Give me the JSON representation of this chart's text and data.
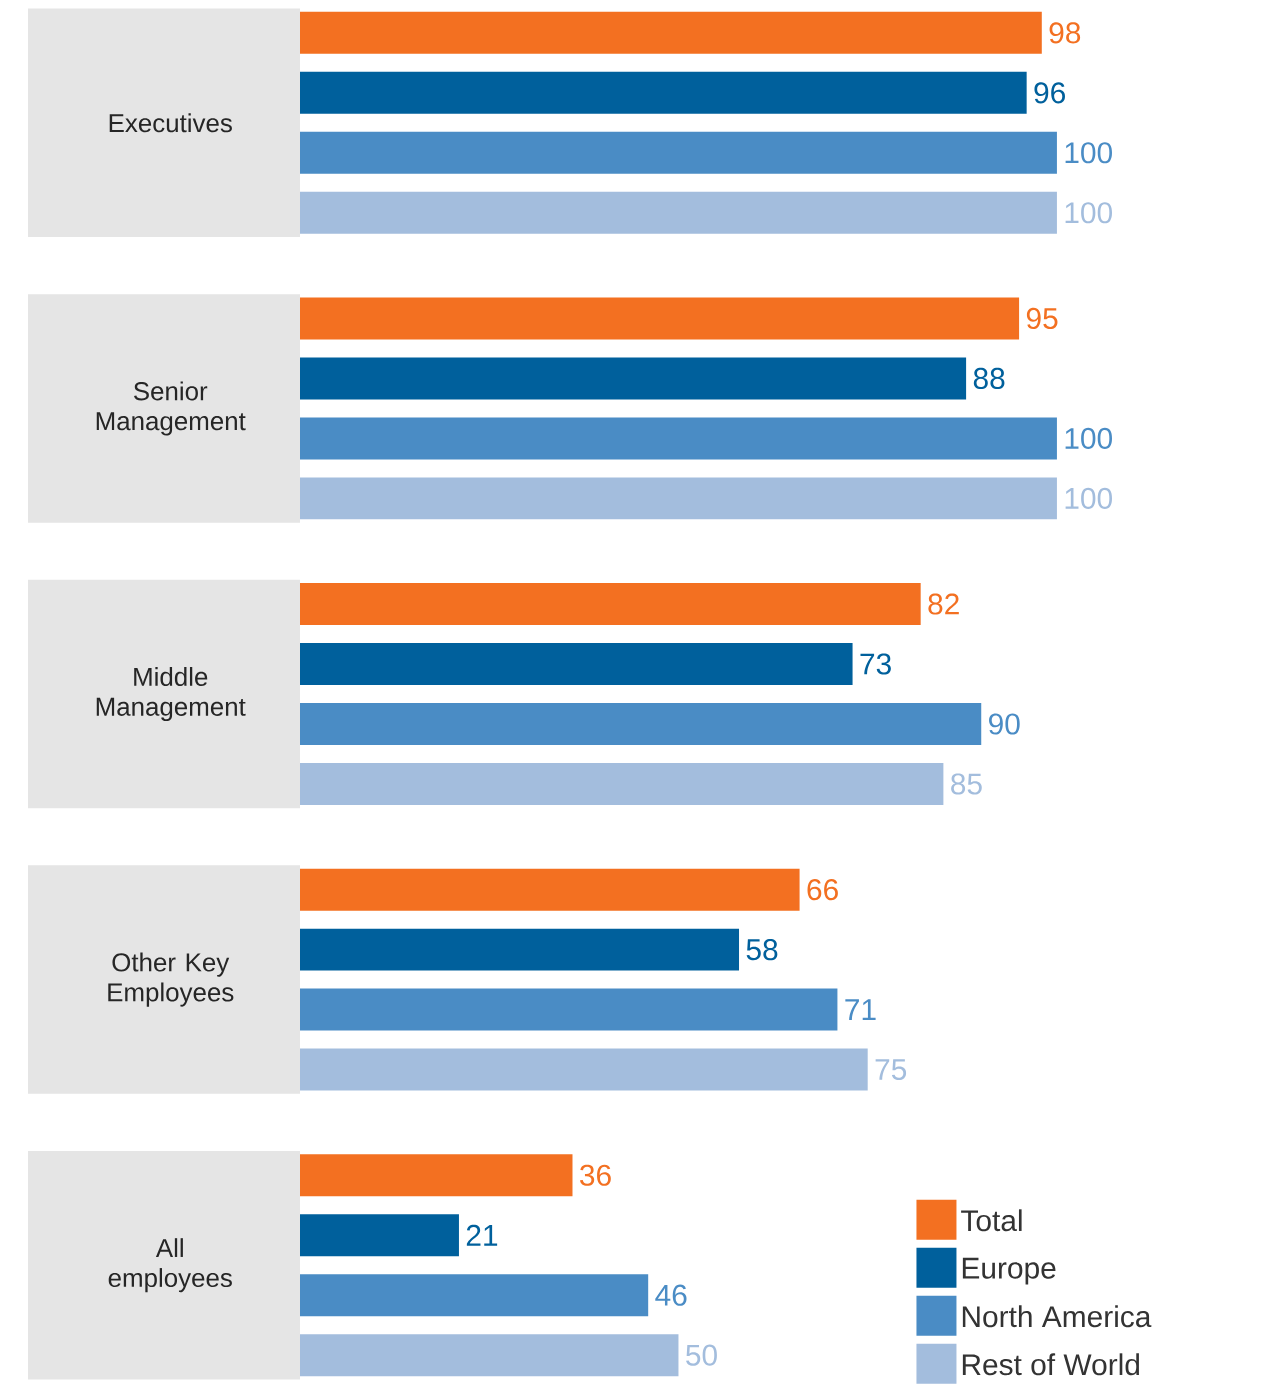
{
  "chart_data": {
    "type": "bar",
    "orientation": "horizontal",
    "categories": [
      "Executives",
      "Senior Management",
      "Middle Management",
      "Other Key Employees",
      "All employees"
    ],
    "series": [
      {
        "name": "Total",
        "color": "#f37021",
        "values": [
          98,
          95,
          82,
          66,
          36
        ]
      },
      {
        "name": "Europe",
        "color": "#00609c",
        "values": [
          96,
          88,
          73,
          58,
          21
        ]
      },
      {
        "name": "North America",
        "color": "#4a8cc5",
        "values": [
          100,
          100,
          90,
          71,
          46
        ]
      },
      {
        "name": "Rest of World",
        "color": "#a3bddd",
        "values": [
          100,
          100,
          85,
          75,
          50
        ]
      }
    ],
    "data_labels": true,
    "legend": "bottom right"
  }
}
